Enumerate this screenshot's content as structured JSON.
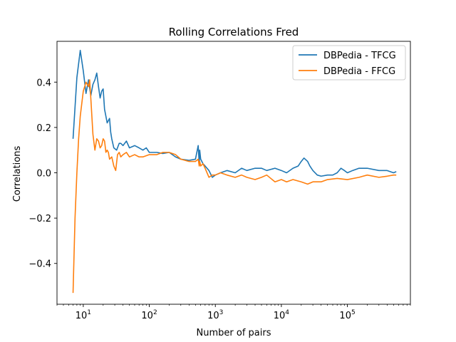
{
  "chart_data": {
    "type": "line",
    "title": "Rolling Correlations Fred",
    "xlabel": "Number of pairs",
    "ylabel": "Correlations",
    "xscale": "log",
    "xlim": [
      4.0,
      900000
    ],
    "ylim": [
      -0.58,
      0.58
    ],
    "grid": false,
    "legend_position": "top-right",
    "x_ticks": [
      {
        "value": 10,
        "base": "10",
        "exp": "1"
      },
      {
        "value": 100,
        "base": "10",
        "exp": "2"
      },
      {
        "value": 1000,
        "base": "10",
        "exp": "3"
      },
      {
        "value": 10000,
        "base": "10",
        "exp": "4"
      },
      {
        "value": 100000,
        "base": "10",
        "exp": "5"
      }
    ],
    "y_ticks": [
      {
        "value": -0.4,
        "label": "−0.4"
      },
      {
        "value": -0.2,
        "label": "−0.2"
      },
      {
        "value": 0.0,
        "label": "0.0"
      },
      {
        "value": 0.2,
        "label": "0.2"
      },
      {
        "value": 0.4,
        "label": "0.4"
      }
    ],
    "series": [
      {
        "name": "DBPedia - TFCG",
        "color": "#1f77b4",
        "x": [
          7,
          8,
          9,
          10,
          11,
          12,
          13,
          14,
          15,
          16,
          17,
          18,
          19,
          20,
          21,
          22,
          23,
          25,
          26,
          27,
          29,
          32,
          35,
          37,
          40,
          45,
          50,
          60,
          70,
          80,
          90,
          100,
          130,
          160,
          200,
          250,
          300,
          400,
          500,
          550,
          570,
          580,
          600,
          650,
          700,
          800,
          900,
          1000,
          1200,
          1500,
          2000,
          2500,
          3000,
          4000,
          5000,
          6000,
          8000,
          10000,
          12000,
          15000,
          18000,
          20000,
          22000,
          25000,
          27000,
          30000,
          35000,
          40000,
          50000,
          60000,
          70000,
          80000,
          90000,
          100000,
          120000,
          150000,
          200000,
          300000,
          400000,
          500000,
          550000
        ],
        "y": [
          0.15,
          0.42,
          0.54,
          0.45,
          0.35,
          0.41,
          0.34,
          0.39,
          0.41,
          0.44,
          0.38,
          0.33,
          0.36,
          0.37,
          0.28,
          0.25,
          0.22,
          0.24,
          0.18,
          0.15,
          0.11,
          0.1,
          0.13,
          0.13,
          0.12,
          0.14,
          0.11,
          0.12,
          0.11,
          0.1,
          0.11,
          0.09,
          0.09,
          0.085,
          0.09,
          0.07,
          0.06,
          0.055,
          0.06,
          0.12,
          0.04,
          0.1,
          0.06,
          0.04,
          0.03,
          0.01,
          -0.02,
          -0.01,
          0.0,
          0.01,
          0.0,
          0.02,
          0.01,
          0.02,
          0.02,
          0.01,
          0.02,
          0.01,
          0.0,
          0.02,
          0.03,
          0.05,
          0.065,
          0.05,
          0.03,
          0.01,
          -0.01,
          -0.015,
          -0.01,
          -0.01,
          0.0,
          0.02,
          0.01,
          0.0,
          0.01,
          0.02,
          0.02,
          0.01,
          0.01,
          0.0,
          0.005
        ]
      },
      {
        "name": "DBPedia - FFCG",
        "color": "#ff7f0e",
        "x": [
          7,
          7.5,
          8,
          8.5,
          9,
          10,
          11,
          12,
          12.5,
          13,
          14,
          15,
          16,
          17,
          18,
          19,
          20,
          21,
          22,
          23,
          24,
          25,
          27,
          29,
          31,
          33,
          35,
          37,
          40,
          45,
          50,
          60,
          70,
          80,
          100,
          130,
          160,
          200,
          250,
          300,
          400,
          500,
          550,
          570,
          580,
          600,
          650,
          700,
          800,
          900,
          1000,
          1200,
          1500,
          2000,
          2500,
          3000,
          4000,
          5000,
          6000,
          8000,
          10000,
          12000,
          15000,
          20000,
          25000,
          30000,
          40000,
          50000,
          70000,
          100000,
          150000,
          200000,
          300000,
          400000,
          500000,
          550000
        ],
        "y": [
          -0.53,
          -0.2,
          0.0,
          0.15,
          0.25,
          0.36,
          0.4,
          0.38,
          0.41,
          0.33,
          0.17,
          0.1,
          0.15,
          0.14,
          0.11,
          0.12,
          0.15,
          0.14,
          0.09,
          0.1,
          0.09,
          0.06,
          0.07,
          0.03,
          0.01,
          0.08,
          0.09,
          0.07,
          0.08,
          0.09,
          0.07,
          0.08,
          0.07,
          0.07,
          0.08,
          0.08,
          0.09,
          0.09,
          0.08,
          0.06,
          0.05,
          0.05,
          0.06,
          0.03,
          0.05,
          0.03,
          0.04,
          0.02,
          -0.02,
          -0.01,
          -0.01,
          0.0,
          -0.01,
          -0.02,
          -0.01,
          -0.02,
          -0.03,
          -0.02,
          -0.01,
          -0.04,
          -0.03,
          -0.04,
          -0.03,
          -0.04,
          -0.05,
          -0.04,
          -0.04,
          -0.03,
          -0.025,
          -0.03,
          -0.02,
          -0.01,
          -0.02,
          -0.015,
          -0.01,
          -0.01
        ]
      }
    ]
  }
}
